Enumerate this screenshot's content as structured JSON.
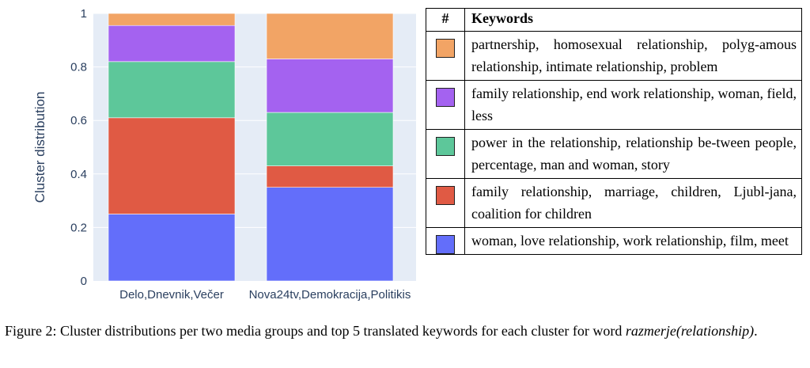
{
  "chart_data": {
    "type": "bar",
    "stacked": true,
    "categories": [
      "Delo,Dnevnik,Večer",
      "Nova24tv,Demokracija,Politikis"
    ],
    "series": [
      {
        "key": "blue",
        "color": "#636efa",
        "values": [
          0.25,
          0.35
        ]
      },
      {
        "key": "red",
        "color": "#e05a44",
        "values": [
          0.36,
          0.08
        ]
      },
      {
        "key": "green",
        "color": "#5dc79a",
        "values": [
          0.21,
          0.2
        ]
      },
      {
        "key": "purple",
        "color": "#a462f0",
        "values": [
          0.135,
          0.2
        ]
      },
      {
        "key": "orange",
        "color": "#f2a465",
        "values": [
          0.045,
          0.17
        ]
      }
    ],
    "ylabel": "Cluster distribution",
    "ylim": [
      0,
      1
    ],
    "yticks": [
      0,
      0.2,
      0.4,
      0.6,
      0.8,
      1
    ],
    "ytick_labels": [
      "0",
      "0.2",
      "0.4",
      "0.6",
      "0.8",
      "1"
    ],
    "grid": true,
    "background": "#e5ecf6"
  },
  "table": {
    "header_num": "#",
    "header_keywords": "Keywords",
    "rows": [
      {
        "color": "#f2a465",
        "keywords": "partnership, homosexual relationship, polyg-amous relationship, intimate relationship, problem"
      },
      {
        "color": "#a462f0",
        "keywords": "family relationship, end work relationship, woman, field, less"
      },
      {
        "color": "#5dc79a",
        "keywords": "power in the relationship, relationship be-tween people, percentage, man and woman, story"
      },
      {
        "color": "#e05a44",
        "keywords": "family relationship, marriage, children, Ljubl-jana, coalition for children"
      },
      {
        "color": "#636efa",
        "keywords": "woman, love relationship, work relationship, film, meet"
      }
    ]
  },
  "caption": {
    "text": "Figure 2: Cluster distributions per two media groups and top 5 translated keywords for each cluster for word ",
    "word": "razmerje(relationship)",
    "end": "."
  }
}
